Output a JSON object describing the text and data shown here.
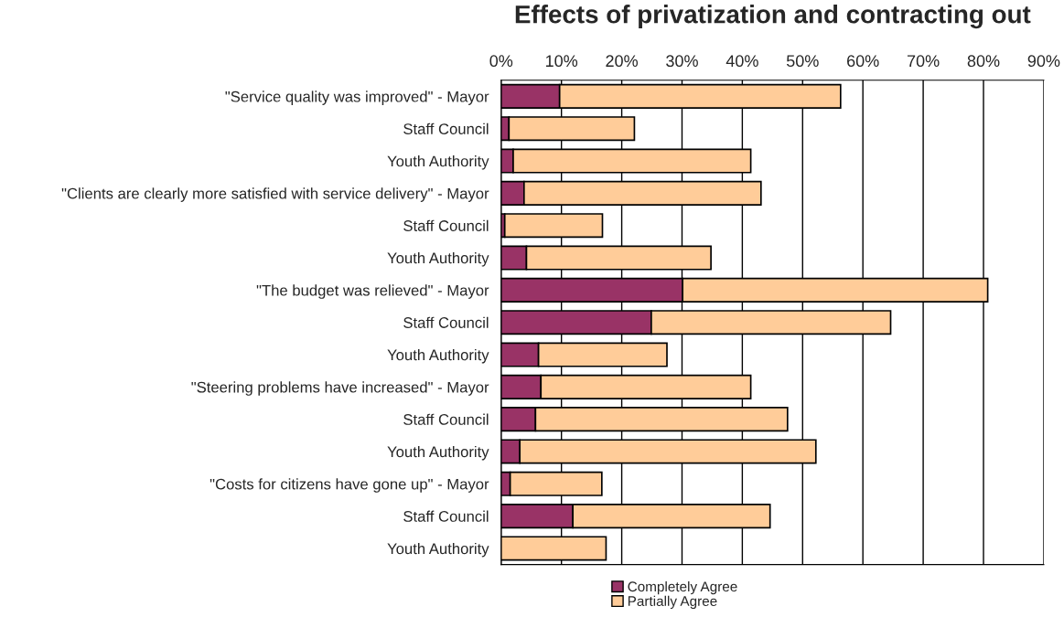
{
  "chart_data": {
    "type": "bar",
    "orientation": "horizontal",
    "stacked": true,
    "title": "Effects of privatization and contracting out",
    "categories": [
      "\"Service quality was improved\" - Mayor",
      "Staff Council",
      "Youth Authority",
      "\"Clients are clearly more satisfied with service delivery\" - Mayor",
      "Staff Council",
      "Youth Authority",
      "\"The budget was relieved\" - Mayor",
      "Staff Council",
      "Youth Authority",
      "\"Steering problems have increased\" - Mayor",
      "Staff Council",
      "Youth Authority",
      "\"Costs for citizens have gone up\" - Mayor",
      "Staff Council",
      "Youth Authority"
    ],
    "series": [
      {
        "name": "Completely Agree",
        "color": "#993366",
        "values": [
          9.7,
          1.3,
          2.0,
          3.8,
          0.6,
          4.2,
          30.1,
          24.9,
          6.2,
          6.6,
          5.7,
          3.1,
          1.5,
          11.9,
          0
        ]
      },
      {
        "name": "Partially Agree",
        "color": "#ffcc99",
        "values": [
          46.6,
          20.8,
          39.4,
          39.3,
          16.2,
          30.6,
          50.6,
          39.7,
          21.3,
          34.8,
          41.8,
          49.1,
          15.2,
          32.7,
          17.4
        ]
      }
    ],
    "xlim": [
      0,
      90
    ],
    "xticks": [
      {
        "value": 0,
        "label": "0%"
      },
      {
        "value": 10,
        "label": "10%"
      },
      {
        "value": 20,
        "label": "20%"
      },
      {
        "value": 30,
        "label": "30%"
      },
      {
        "value": 40,
        "label": "40%"
      },
      {
        "value": 50,
        "label": "50%"
      },
      {
        "value": 60,
        "label": "60%"
      },
      {
        "value": 70,
        "label": "70%"
      },
      {
        "value": 80,
        "label": "80%"
      },
      {
        "value": 90,
        "label": "90%"
      }
    ],
    "grid": "x",
    "legend": "bottom"
  }
}
